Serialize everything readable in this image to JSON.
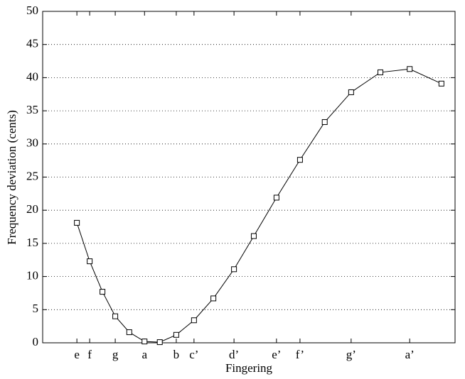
{
  "chart_data": {
    "type": "line",
    "xlabel": "Fingering",
    "ylabel": "Frequency deviation (cents)",
    "x": [
      8.3,
      11.4,
      14.5,
      17.6,
      21.0,
      24.7,
      28.4,
      32.4,
      36.7,
      41.4,
      46.4,
      51.2,
      56.7,
      62.4,
      68.4,
      74.8,
      81.9,
      89.0,
      96.7
    ],
    "series": [
      {
        "color": "#000000",
        "marker": "square",
        "values": [
          18.1,
          12.3,
          7.7,
          4.0,
          1.6,
          0.2,
          0.1,
          1.2,
          3.4,
          6.7,
          11.1,
          16.1,
          21.9,
          27.6,
          33.3,
          37.8,
          40.8,
          41.3,
          39.1
        ]
      }
    ],
    "xlim": [
      0,
      100
    ],
    "xticks": [
      {
        "value": 8.3,
        "label": "e"
      },
      {
        "value": 11.4,
        "label": "f"
      },
      {
        "value": 17.6,
        "label": "g"
      },
      {
        "value": 24.7,
        "label": "a"
      },
      {
        "value": 32.4,
        "label": "b"
      },
      {
        "value": 36.7,
        "label": "c’"
      },
      {
        "value": 46.4,
        "label": "d’"
      },
      {
        "value": 56.7,
        "label": "e’"
      },
      {
        "value": 62.4,
        "label": "f’"
      },
      {
        "value": 74.8,
        "label": "g’"
      },
      {
        "value": 89.0,
        "label": "a’"
      }
    ],
    "ylim": [
      0,
      50
    ],
    "yticks": [
      0,
      5,
      10,
      15,
      20,
      25,
      30,
      35,
      40,
      45,
      50
    ],
    "grid": "y"
  }
}
